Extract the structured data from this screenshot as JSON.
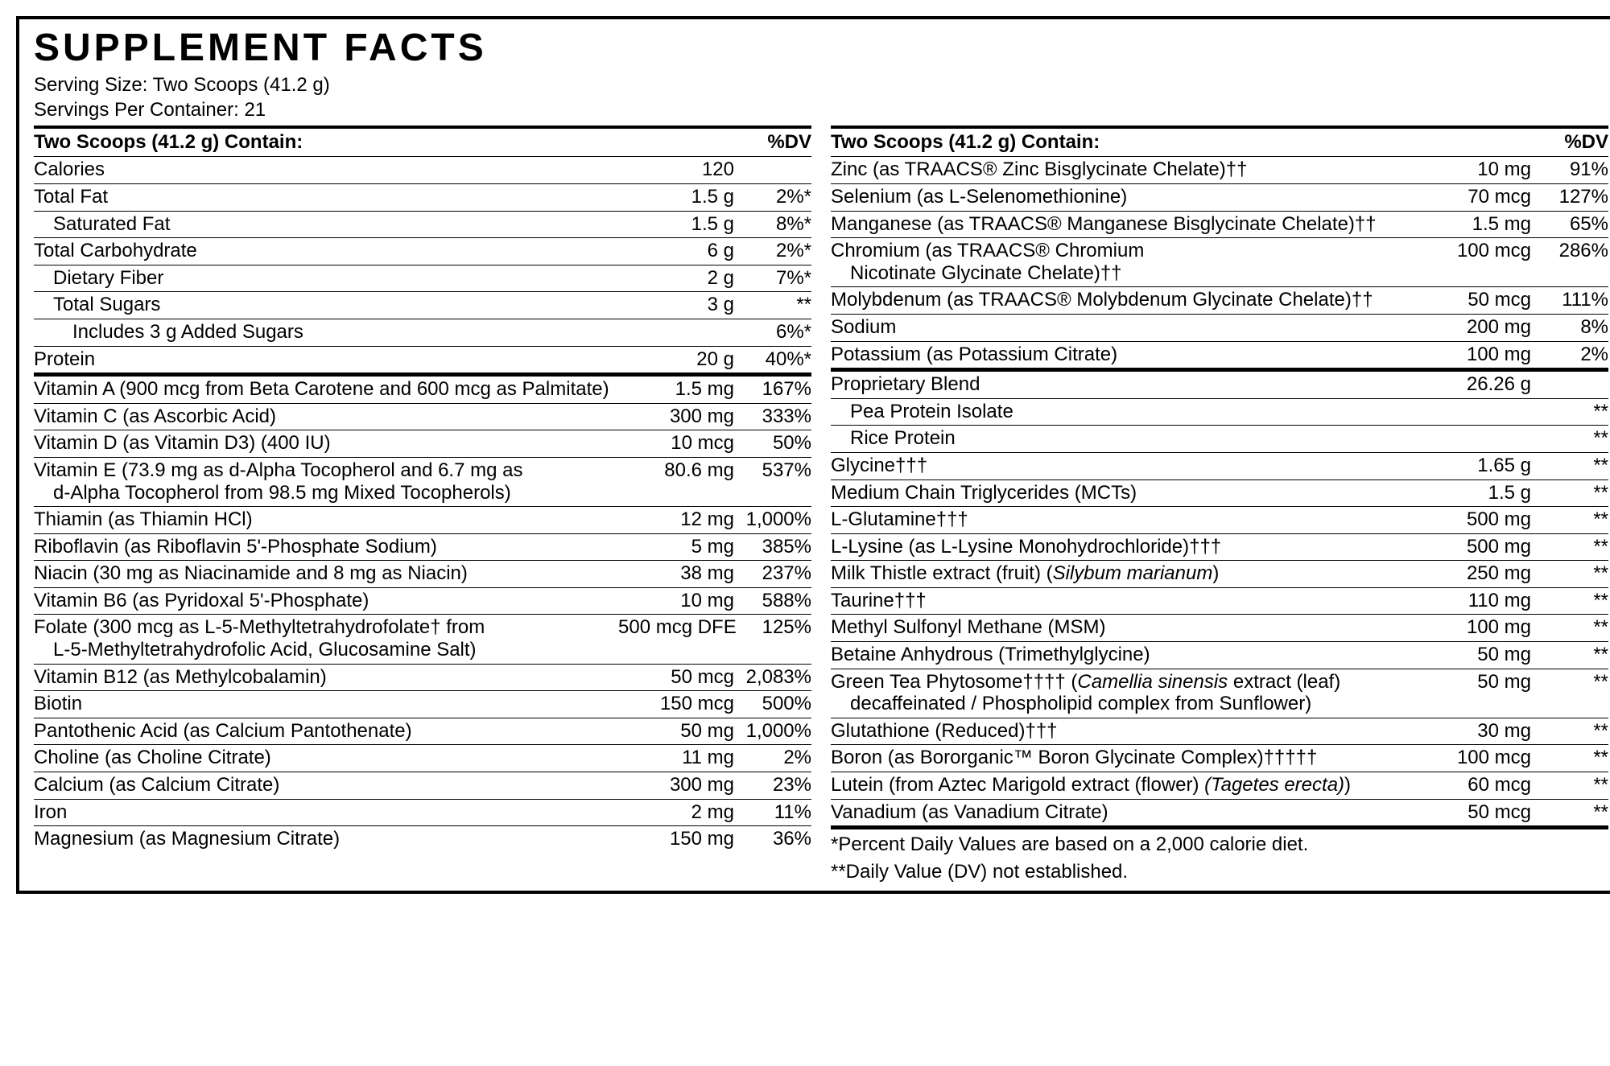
{
  "title": "SUPPLEMENT FACTS",
  "serving_size": "Serving Size: Two Scoops (41.2 g)",
  "servings_per": "Servings Per Container: 21",
  "header_label": "Two Scoops (41.2 g) Contain:",
  "header_dv": "%DV",
  "left": {
    "sec1": [
      {
        "n": "Calories",
        "a": "120",
        "d": ""
      },
      {
        "n": "Total Fat",
        "a": "1.5 g",
        "d": "2%*"
      },
      {
        "n": "Saturated Fat",
        "a": "1.5 g",
        "d": "8%*",
        "indent": 1
      },
      {
        "n": "Total Carbohydrate",
        "a": "6 g",
        "d": "2%*"
      },
      {
        "n": "Dietary Fiber",
        "a": "2 g",
        "d": "7%*",
        "indent": 1
      },
      {
        "n": "Total Sugars",
        "a": "3 g",
        "d": "**",
        "indent": 1
      },
      {
        "n": "Includes 3 g Added Sugars",
        "a": "",
        "d": "6%*",
        "indent": 2
      },
      {
        "n": "Protein",
        "a": "20 g",
        "d": "40%*"
      }
    ],
    "sec2": [
      {
        "n": "Vitamin A (900 mcg from Beta Carotene and 600 mcg as Palmitate)",
        "a": "1.5 mg",
        "d": "167%"
      },
      {
        "n": "Vitamin C (as Ascorbic Acid)",
        "a": "300 mg",
        "d": "333%"
      },
      {
        "n": "Vitamin D (as Vitamin D3) (400 IU)",
        "a": "10 mcg",
        "d": "50%"
      },
      {
        "n": "Vitamin E (73.9 mg as d-Alpha Tocopherol and 6.7 mg as",
        "n2": "d-Alpha Tocopherol from 98.5 mg Mixed Tocopherols)",
        "a": "80.6 mg",
        "d": "537%"
      },
      {
        "n": "Thiamin (as Thiamin HCl)",
        "a": "12 mg",
        "d": "1,000%"
      },
      {
        "n": "Riboflavin (as Riboflavin 5'-Phosphate Sodium)",
        "a": "5 mg",
        "d": "385%"
      },
      {
        "n": "Niacin (30 mg as Niacinamide and 8 mg as Niacin)",
        "a": "38 mg",
        "d": "237%"
      },
      {
        "n": "Vitamin B6 (as Pyridoxal 5'-Phosphate)",
        "a": "10 mg",
        "d": "588%"
      },
      {
        "n": "Folate (300 mcg as L-5-Methyltetrahydrofolate† from",
        "n2": "L-5-Methyltetrahydrofolic Acid, Glucosamine Salt)",
        "a": "500 mcg DFE",
        "d": "125%"
      },
      {
        "n": "Vitamin B12 (as Methylcobalamin)",
        "a": "50 mcg",
        "d": "2,083%"
      },
      {
        "n": "Biotin",
        "a": "150 mcg",
        "d": "500%"
      },
      {
        "n": "Pantothenic Acid (as Calcium Pantothenate)",
        "a": "50 mg",
        "d": "1,000%"
      },
      {
        "n": "Choline (as Choline Citrate)",
        "a": "11 mg",
        "d": "2%"
      },
      {
        "n": "Calcium (as Calcium Citrate)",
        "a": "300 mg",
        "d": "23%"
      },
      {
        "n": "Iron",
        "a": "2 mg",
        "d": "11%"
      },
      {
        "n": "Magnesium (as Magnesium Citrate)",
        "a": "150 mg",
        "d": "36%",
        "last": true
      }
    ]
  },
  "right": {
    "sec1": [
      {
        "n": "Zinc (as TRAACS® Zinc Bisglycinate Chelate)††",
        "a": "10 mg",
        "d": "91%"
      },
      {
        "n": "Selenium (as L-Selenomethionine)",
        "a": "70 mcg",
        "d": "127%"
      },
      {
        "n": "Manganese (as TRAACS® Manganese Bisglycinate Chelate)††",
        "a": "1.5 mg",
        "d": "65%"
      },
      {
        "n": "Chromium (as TRAACS® Chromium",
        "n2": "Nicotinate Glycinate Chelate)††",
        "a": "100 mcg",
        "d": "286%"
      },
      {
        "n": "Molybdenum (as TRAACS® Molybdenum Glycinate Chelate)††",
        "a": "50 mcg",
        "d": "111%"
      },
      {
        "n": "Sodium",
        "a": "200 mg",
        "d": "8%"
      },
      {
        "n": "Potassium (as Potassium Citrate)",
        "a": "100 mg",
        "d": "2%"
      }
    ],
    "sec2": [
      {
        "n": "Proprietary Blend",
        "a": "26.26 g",
        "d": ""
      },
      {
        "n": "Pea Protein Isolate",
        "a": "",
        "d": "**",
        "indent": 1
      },
      {
        "n": "Rice Protein",
        "a": "",
        "d": "**",
        "indent": 1
      },
      {
        "n": "Glycine†††",
        "a": "1.65 g",
        "d": "**"
      },
      {
        "n": "Medium Chain Triglycerides (MCTs)",
        "a": "1.5 g",
        "d": "**"
      },
      {
        "n": "L-Glutamine†††",
        "a": "500 mg",
        "d": "**"
      },
      {
        "n": "L-Lysine (as L-Lysine Monohydrochloride)†††",
        "a": "500 mg",
        "d": "**"
      },
      {
        "html": "Milk Thistle extract (fruit) (<em class='sci'>Silybum marianum</em>)",
        "a": "250 mg",
        "d": "**"
      },
      {
        "n": "Taurine†††",
        "a": "110 mg",
        "d": "**"
      },
      {
        "n": "Methyl Sulfonyl Methane (MSM)",
        "a": "100 mg",
        "d": "**"
      },
      {
        "n": "Betaine Anhydrous (Trimethylglycine)",
        "a": "50 mg",
        "d": "**"
      },
      {
        "html": "Green Tea Phytosome†††† (<em class='sci'>Camellia sinensis</em> extract (leaf)",
        "n2": "decaffeinated / Phospholipid complex from Sunflower)",
        "a": "50 mg",
        "d": "**"
      },
      {
        "n": "Glutathione (Reduced)†††",
        "a": "30 mg",
        "d": "**"
      },
      {
        "n": "Boron (as Bororganic™ Boron Glycinate Complex)†††††",
        "a": "100 mcg",
        "d": "**"
      },
      {
        "html": "Lutein (from Aztec Marigold extract (flower) <em class='sci'>(Tagetes erecta)</em>)",
        "a": "60 mcg",
        "d": "**"
      },
      {
        "n": "Vanadium (as Vanadium Citrate)",
        "a": "50 mcg",
        "d": "**"
      }
    ]
  },
  "footnotes": [
    "*Percent Daily Values are based on a 2,000 calorie diet.",
    "**Daily Value (DV) not established."
  ]
}
